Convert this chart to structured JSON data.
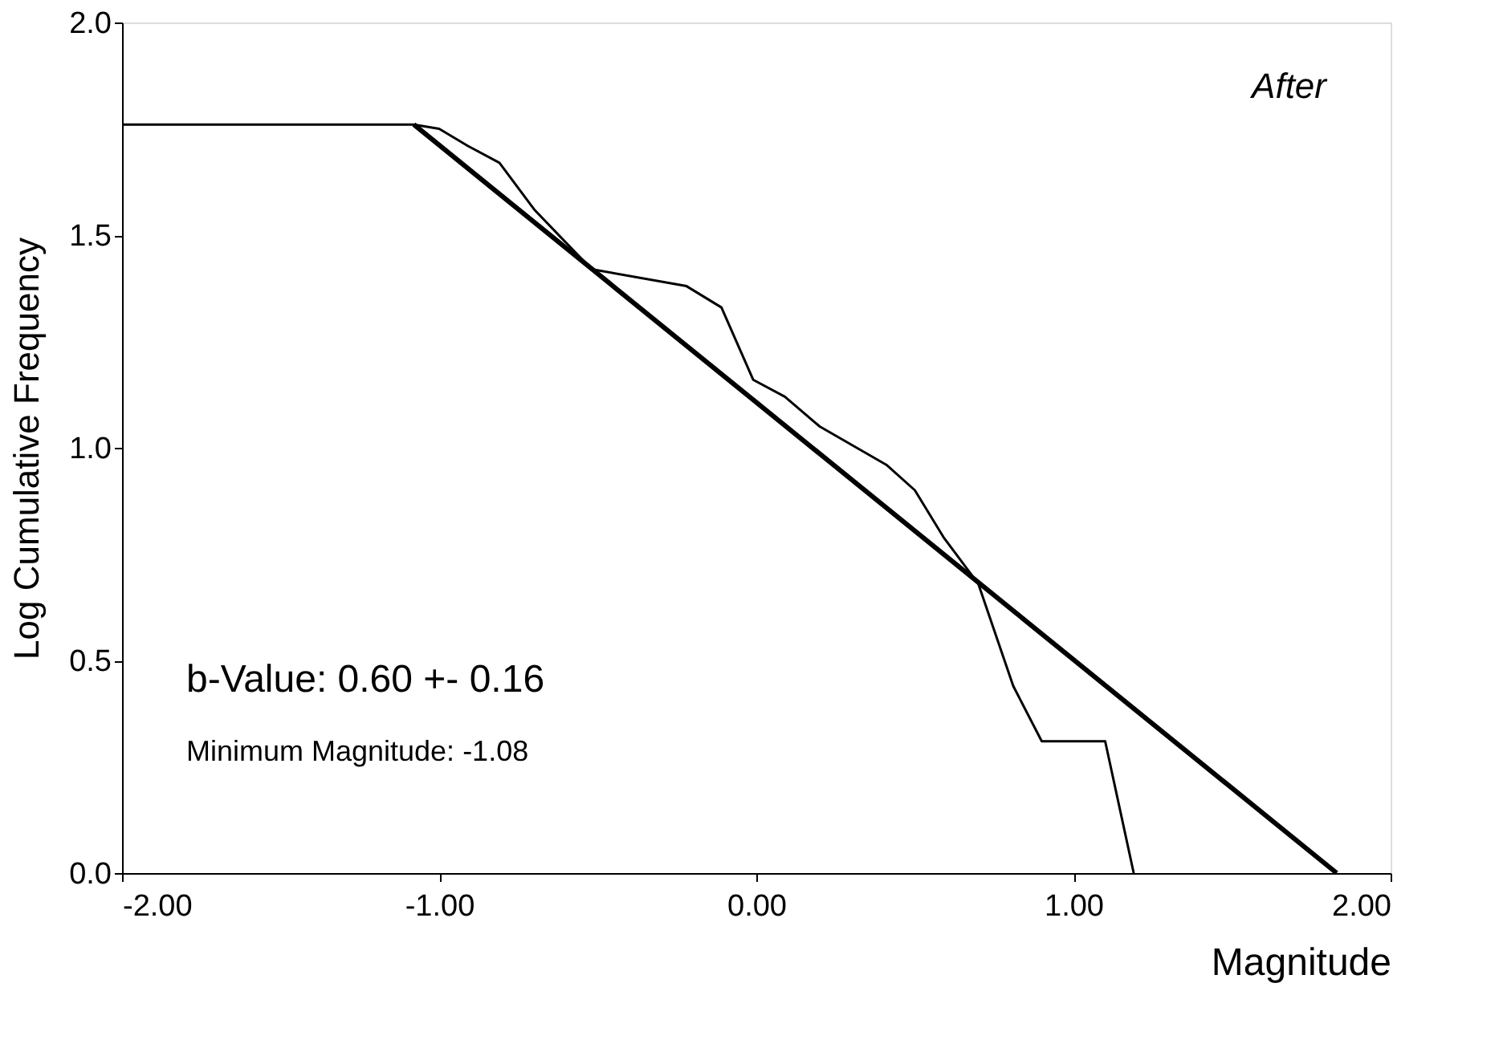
{
  "chart_data": {
    "type": "line",
    "xlabel": "Magnitude",
    "ylabel": "Log Cumulative Frequency",
    "xlim": [
      -2,
      2
    ],
    "ylim": [
      0,
      2
    ],
    "xticks": [
      {
        "value": -2,
        "label": "-2.00"
      },
      {
        "value": -1,
        "label": "-1.00"
      },
      {
        "value": 0,
        "label": "0.00"
      },
      {
        "value": 1,
        "label": "1.00"
      },
      {
        "value": 2,
        "label": "2.00"
      }
    ],
    "yticks": [
      {
        "value": 0,
        "label": "0.0"
      },
      {
        "value": 0.5,
        "label": "0.5"
      },
      {
        "value": 1,
        "label": "1.0"
      },
      {
        "value": 1.5,
        "label": "1.5"
      },
      {
        "value": 2,
        "label": "2.0"
      }
    ],
    "series": [
      {
        "color": "#000000",
        "x": [
          -2,
          -1.08,
          -1.0,
          -0.91,
          -0.81,
          -0.7,
          -0.52,
          -0.22,
          -0.11,
          -0.01,
          0.09,
          0.2,
          0.41,
          0.5,
          0.59,
          0.7,
          0.81,
          0.9,
          1.1,
          1.19
        ],
        "values": [
          1.76,
          1.76,
          1.75,
          1.71,
          1.67,
          1.56,
          1.42,
          1.38,
          1.33,
          1.16,
          1.12,
          1.05,
          0.96,
          0.9,
          0.79,
          0.68,
          0.44,
          0.31,
          0.31,
          0
        ]
      },
      {
        "color": "#000000",
        "x": [
          -1.08,
          1.83
        ],
        "values": [
          1.76,
          0
        ]
      }
    ],
    "annotations": [
      "After",
      "b-Value: 0.60 +- 0.16",
      "Minimum Magnitude: -1.08"
    ],
    "grid": false,
    "marker": "none",
    "line_style": "solid"
  }
}
